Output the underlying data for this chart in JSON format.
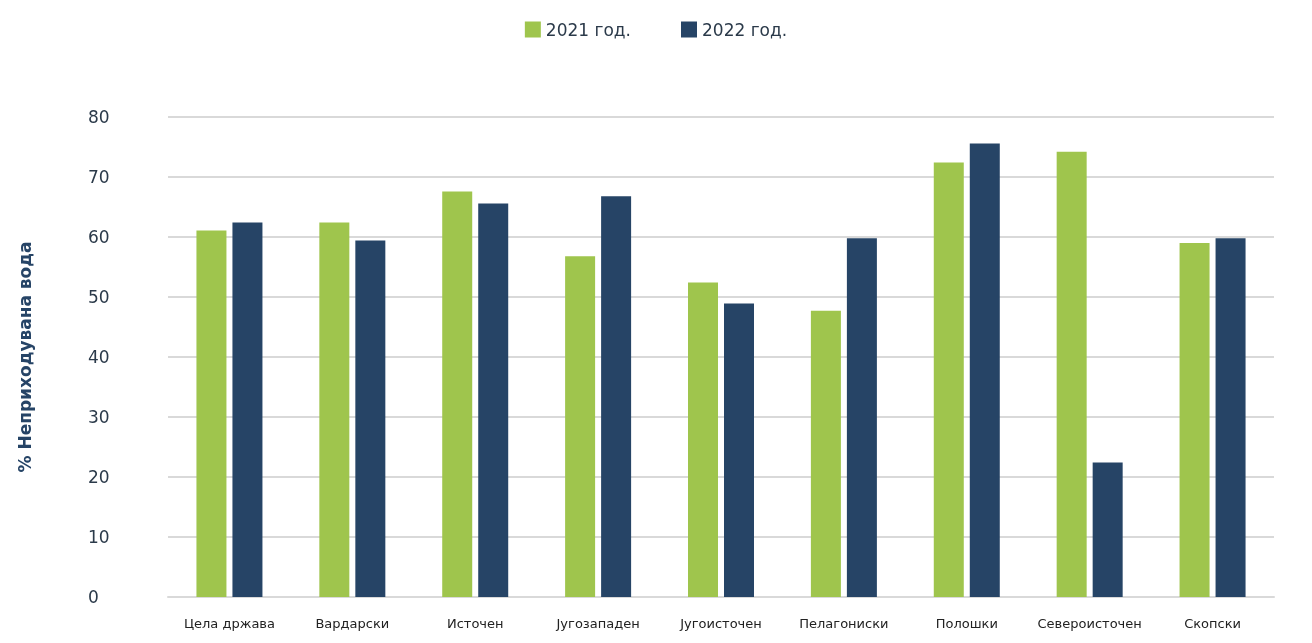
{
  "chart_data": {
    "type": "bar",
    "ylabel": "% Неприходувана вода",
    "categories": [
      "Цела држава",
      "Вардарски",
      "Источен",
      "Југозападен",
      "Југоисточен",
      "Пелагониски",
      "Полошки",
      "Североисточен",
      "Скопски"
    ],
    "series": [
      {
        "name": "2021 год.",
        "color": "#9fc54d",
        "values": [
          61.1,
          62.4,
          67.6,
          56.8,
          52.4,
          47.7,
          72.4,
          74.2,
          59.0
        ]
      },
      {
        "name": "2022 год.",
        "color": "#264466",
        "values": [
          62.4,
          59.4,
          65.6,
          66.8,
          48.9,
          59.8,
          75.6,
          22.4,
          59.8
        ]
      }
    ],
    "ylim": [
      0,
      80
    ],
    "yticks": [
      0,
      10,
      20,
      30,
      40,
      50,
      60,
      70,
      80
    ],
    "grid": "y",
    "legend": "top"
  }
}
